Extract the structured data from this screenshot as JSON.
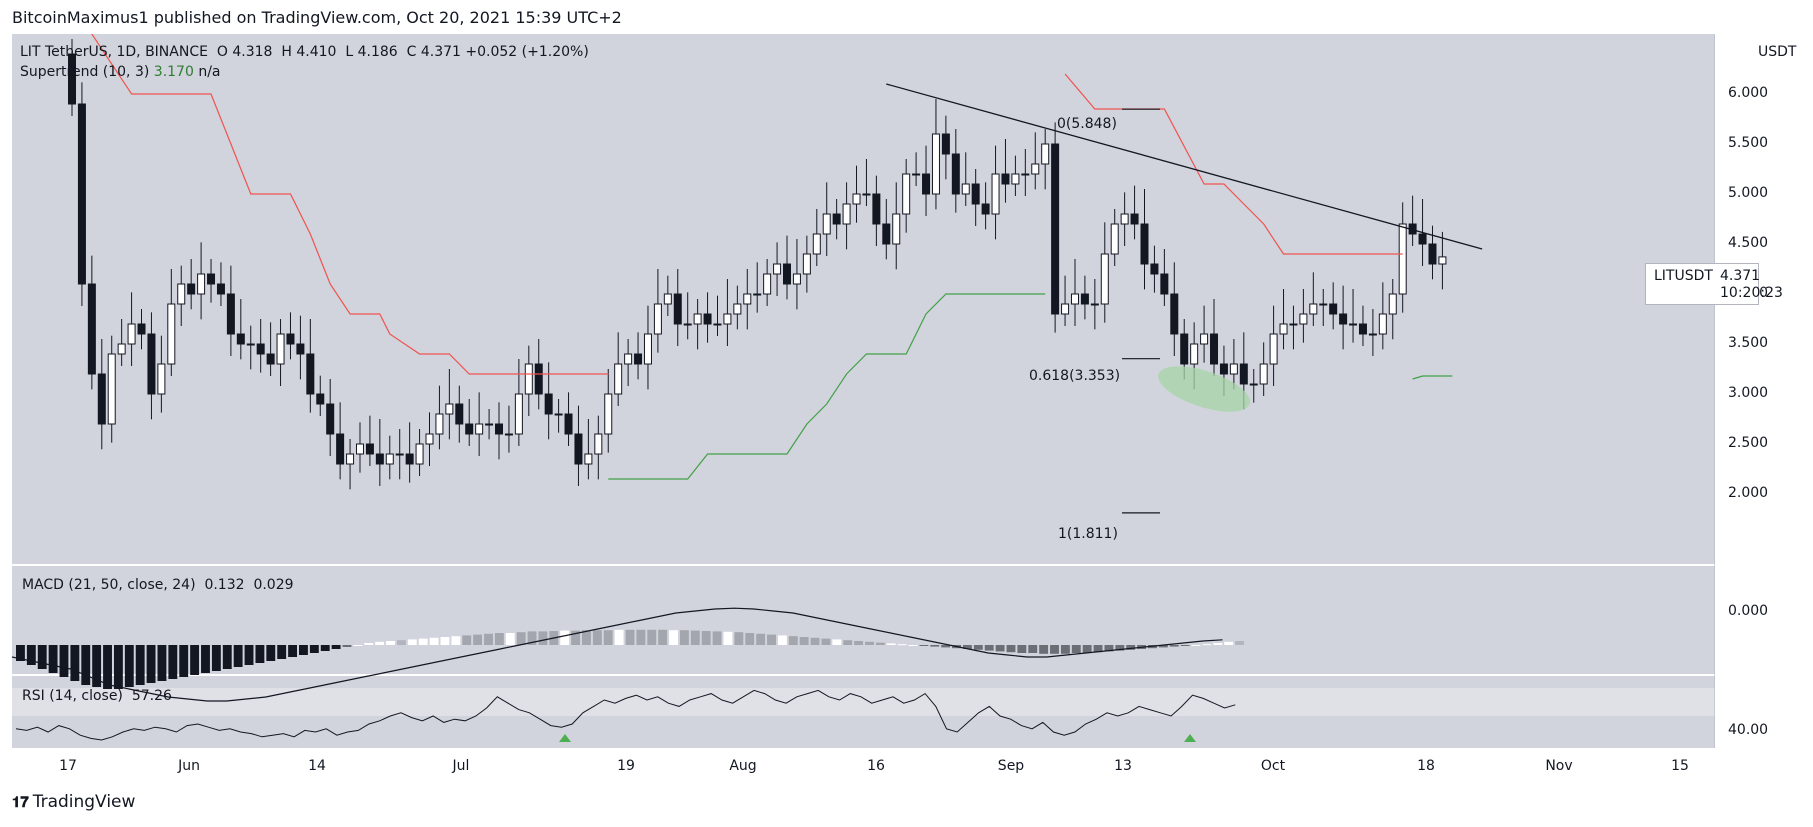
{
  "header": {
    "publisher": "BitcoinMaximus1 published on TradingView.com, Oct 20, 2021 15:39 UTC+2"
  },
  "legend": {
    "symbol": "LIT",
    "pair": "TetherUS, 1D, BINANCE",
    "o_label": "O",
    "o": "4.318",
    "h_label": "H",
    "h": "4.410",
    "l_label": "L",
    "l": "4.186",
    "c_label": "C",
    "c": "4.371",
    "change": "+0.052 (+1.20%)",
    "supertrend": "Supertrend (10, 3)",
    "supertrend_val": "3.170",
    "supertrend_na": "n/a"
  },
  "price_axis": {
    "currency": "USDT",
    "ticks": [
      "6.000",
      "5.500",
      "5.000",
      "4.500",
      "4.000",
      "3.500",
      "3.000",
      "2.500",
      "2.000"
    ]
  },
  "ticker": {
    "name": "LITUSDT",
    "price": "4.371",
    "countdown": "10:20:23"
  },
  "fib": {
    "f0": "0(5.848)",
    "f618": "0.618(3.353)",
    "f1": "1(1.811)"
  },
  "macd": {
    "label": "MACD (21, 50, close, 24)",
    "v1": "0.132",
    "v2": "0.029",
    "tick": "0.000"
  },
  "rsi": {
    "label": "RSI (14, close)",
    "value": "57.26",
    "tick": "40.00"
  },
  "x_axis": {
    "labels": [
      "17",
      "Jun",
      "14",
      "Jul",
      "19",
      "Aug",
      "16",
      "Sep",
      "13",
      "Oct",
      "18",
      "Nov",
      "15"
    ]
  },
  "footer": {
    "brand": "TradingView"
  },
  "colors": {
    "bg": "#d1d4dc",
    "supertrend_down": "#f05350",
    "supertrend_up": "#43a047",
    "ellipse": "#a5d6a7"
  },
  "chart_data": {
    "type": "candlestick",
    "symbol": "LITUSDT",
    "interval": "1D",
    "ylim": [
      1.5,
      6.5
    ],
    "ohlc_last": {
      "open": 4.318,
      "high": 4.41,
      "low": 4.186,
      "close": 4.371
    },
    "close_series": [
      5.9,
      4.1,
      3.2,
      2.7,
      3.4,
      3.5,
      3.7,
      3.6,
      3.0,
      3.3,
      3.9,
      4.1,
      4.0,
      4.2,
      4.1,
      4.0,
      3.6,
      3.5,
      3.5,
      3.4,
      3.3,
      3.6,
      3.5,
      3.4,
      3.0,
      2.9,
      2.6,
      2.3,
      2.4,
      2.5,
      2.4,
      2.3,
      2.4,
      2.4,
      2.3,
      2.5,
      2.6,
      2.8,
      2.9,
      2.7,
      2.6,
      2.7,
      2.7,
      2.6,
      2.6,
      3.0,
      3.3,
      3.0,
      2.8,
      2.8,
      2.6,
      2.3,
      2.4,
      2.6,
      3.0,
      3.3,
      3.4,
      3.3,
      3.6,
      3.9,
      4.0,
      3.7,
      3.7,
      3.8,
      3.7,
      3.7,
      3.8,
      3.9,
      4.0,
      4.0,
      4.2,
      4.3,
      4.1,
      4.2,
      4.4,
      4.6,
      4.8,
      4.7,
      4.9,
      5.0,
      5.0,
      4.7,
      4.5,
      4.8,
      5.2,
      5.2,
      5.0,
      5.6,
      5.4,
      5.0,
      5.1,
      4.9,
      4.8,
      5.2,
      5.1,
      5.2,
      5.2,
      5.3,
      5.5,
      3.8,
      3.9,
      4.0,
      3.9,
      3.9,
      4.4,
      4.7,
      4.8,
      4.7,
      4.3,
      4.2,
      4.0,
      3.6,
      3.3,
      3.5,
      3.6,
      3.3,
      3.2,
      3.3,
      3.1,
      3.1,
      3.3,
      3.6,
      3.7,
      3.7,
      3.8,
      3.9,
      3.9,
      3.8,
      3.7,
      3.7,
      3.6,
      3.6,
      3.8,
      4.0,
      4.7,
      4.6,
      4.5,
      4.3,
      4.371
    ],
    "supertrend": {
      "down": [
        [
          0,
          6.9
        ],
        [
          4,
          6.3
        ],
        [
          6,
          6.0
        ],
        [
          14,
          6.0
        ],
        [
          16,
          5.5
        ],
        [
          18,
          5.0
        ],
        [
          22,
          5.0
        ],
        [
          24,
          4.6
        ],
        [
          26,
          4.1
        ],
        [
          28,
          3.8
        ],
        [
          31,
          3.8
        ],
        [
          32,
          3.6
        ],
        [
          35,
          3.4
        ],
        [
          38,
          3.4
        ],
        [
          40,
          3.2
        ],
        [
          54,
          3.2
        ]
      ],
      "down2": [
        [
          100,
          6.2
        ],
        [
          103,
          5.85
        ],
        [
          110,
          5.85
        ],
        [
          114,
          5.1
        ],
        [
          116,
          5.1
        ],
        [
          118,
          4.9
        ],
        [
          120,
          4.7
        ],
        [
          122,
          4.4
        ],
        [
          134,
          4.4
        ]
      ],
      "up": [
        [
          54,
          2.15
        ],
        [
          62,
          2.15
        ],
        [
          64,
          2.4
        ],
        [
          72,
          2.4
        ],
        [
          74,
          2.7
        ],
        [
          76,
          2.9
        ],
        [
          78,
          3.2
        ],
        [
          80,
          3.4
        ],
        [
          84,
          3.4
        ],
        [
          86,
          3.8
        ],
        [
          88,
          4.0
        ],
        [
          98,
          4.0
        ]
      ],
      "up2": [
        [
          135,
          3.15
        ],
        [
          136,
          3.18
        ],
        [
          139,
          3.18
        ]
      ]
    },
    "trendline": {
      "from": [
        82,
        6.1
      ],
      "to": [
        142,
        4.45
      ]
    },
    "fibonacci": [
      {
        "level": "0",
        "price": 5.848
      },
      {
        "level": "0.618",
        "price": 3.353
      },
      {
        "level": "1",
        "price": 1.811
      }
    ],
    "macd": {
      "params": "21, 50, close, 24",
      "macd": 0.132,
      "signal": 0.029,
      "histogram": [
        -0.4,
        -0.5,
        -0.6,
        -0.7,
        -0.8,
        -0.9,
        -1.0,
        -1.05,
        -1.1,
        -1.1,
        -1.05,
        -1.0,
        -0.95,
        -0.9,
        -0.85,
        -0.8,
        -0.75,
        -0.7,
        -0.65,
        -0.6,
        -0.55,
        -0.5,
        -0.45,
        -0.4,
        -0.35,
        -0.3,
        -0.25,
        -0.2,
        -0.15,
        -0.1,
        -0.05,
        0.0,
        0.05,
        0.08,
        0.1,
        0.12,
        0.14,
        0.16,
        0.18,
        0.2,
        0.22,
        0.24,
        0.26,
        0.28,
        0.3,
        0.3,
        0.32,
        0.34,
        0.34,
        0.35,
        0.36,
        0.36,
        0.37,
        0.37,
        0.37,
        0.38,
        0.38,
        0.38,
        0.38,
        0.38,
        0.37,
        0.37,
        0.36,
        0.35,
        0.34,
        0.33,
        0.32,
        0.3,
        0.28,
        0.26,
        0.24,
        0.22,
        0.2,
        0.18,
        0.16,
        0.14,
        0.12,
        0.1,
        0.08,
        0.06,
        0.04,
        0.02,
        0.0,
        -0.02,
        -0.04,
        -0.06,
        -0.08,
        -0.1,
        -0.12,
        -0.14,
        -0.16,
        -0.18,
        -0.2,
        -0.2,
        -0.22,
        -0.22,
        -0.22,
        -0.2,
        -0.2,
        -0.18,
        -0.16,
        -0.14,
        -0.12,
        -0.1,
        -0.08,
        -0.06,
        -0.04,
        -0.02,
        0.0,
        0.02,
        0.05,
        0.08,
        0.1
      ],
      "macd_line": [
        -0.3,
        -0.4,
        -0.5,
        -0.6,
        -0.8,
        -1.0,
        -1.1,
        -1.2,
        -1.3,
        -1.35,
        -1.4,
        -1.4,
        -1.35,
        -1.3,
        -1.2,
        -1.1,
        -1.0,
        -0.9,
        -0.8,
        -0.7,
        -0.6,
        -0.5,
        -0.4,
        -0.3,
        -0.2,
        -0.1,
        0.0,
        0.1,
        0.2,
        0.3,
        0.4,
        0.5,
        0.6,
        0.7,
        0.8,
        0.85,
        0.9,
        0.92,
        0.9,
        0.85,
        0.8,
        0.7,
        0.6,
        0.5,
        0.4,
        0.3,
        0.2,
        0.1,
        0.0,
        -0.1,
        -0.2,
        -0.25,
        -0.3,
        -0.3,
        -0.25,
        -0.2,
        -0.15,
        -0.1,
        -0.05,
        0.0,
        0.05,
        0.1,
        0.13
      ]
    },
    "rsi": {
      "params": "14, close",
      "value": 57.26,
      "values": [
        42,
        41,
        43,
        40,
        44,
        42,
        38,
        36,
        35,
        37,
        40,
        42,
        41,
        43,
        42,
        40,
        44,
        45,
        43,
        41,
        42,
        40,
        39,
        37,
        38,
        39,
        37,
        41,
        40,
        42,
        38,
        40,
        41,
        45,
        47,
        50,
        52,
        49,
        47,
        50,
        46,
        48,
        47,
        50,
        55,
        62,
        58,
        54,
        52,
        48,
        44,
        43,
        45,
        52,
        56,
        60,
        58,
        61,
        63,
        60,
        62,
        58,
        56,
        60,
        62,
        64,
        60,
        58,
        62,
        66,
        64,
        60,
        58,
        62,
        64,
        66,
        62,
        60,
        64,
        62,
        58,
        60,
        62,
        58,
        60,
        64,
        56,
        42,
        40,
        46,
        52,
        56,
        50,
        48,
        44,
        42,
        46,
        40,
        38,
        40,
        45,
        48,
        52,
        50,
        52,
        56,
        54,
        52,
        50,
        56,
        63,
        61,
        58,
        55,
        57
      ]
    },
    "x_axis_labels": [
      "17",
      "Jun",
      "14",
      "Jul",
      "19",
      "Aug",
      "16",
      "Sep",
      "13",
      "Oct",
      "18",
      "Nov",
      "15"
    ]
  }
}
